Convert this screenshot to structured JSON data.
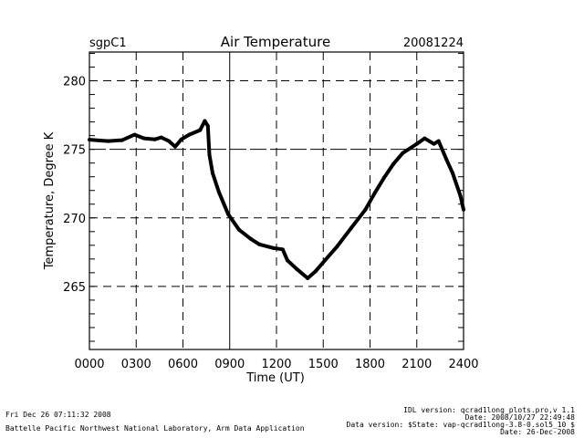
{
  "chart_data": {
    "type": "line",
    "title": "Air Temperature",
    "site": "sgpC1",
    "date": "20081224",
    "xlabel": "Time (UT)",
    "ylabel": "Temperature, Degree K",
    "xlim": [
      0,
      24
    ],
    "ylim": [
      260.4,
      282.1
    ],
    "x_tick_values": [
      0,
      3,
      6,
      9,
      12,
      15,
      18,
      21,
      24
    ],
    "x_tick_labels": [
      "0000",
      "0300",
      "0600",
      "0900",
      "1200",
      "1500",
      "1800",
      "2100",
      "2400"
    ],
    "y_tick_values": [
      265,
      270,
      275,
      280
    ],
    "y_tick_labels": [
      "265",
      "270",
      "275",
      "280"
    ],
    "grid": true,
    "series": [
      {
        "name": "Air Temperature",
        "color": "#000000",
        "x": [
          0,
          1.2,
          2.1,
          2.9,
          3.5,
          4.2,
          4.6,
          5.1,
          5.5,
          5.9,
          6.4,
          7.1,
          7.4,
          7.6,
          7.7,
          7.9,
          8.3,
          8.9,
          9.6,
          10.35,
          10.9,
          11.8,
          12.4,
          12.7,
          13.3,
          14.0,
          14.5,
          15.1,
          15.9,
          16.8,
          17.7,
          18.3,
          18.9,
          19.5,
          20.1,
          21.0,
          21.5,
          22.1,
          22.4,
          22.9,
          23.3,
          23.8,
          24
        ],
        "y": [
          275.7,
          275.6,
          275.67,
          276.07,
          275.8,
          275.73,
          275.87,
          275.6,
          275.2,
          275.73,
          276.07,
          276.4,
          277.07,
          276.7,
          274.6,
          273.27,
          271.9,
          270.27,
          269.13,
          268.47,
          268.07,
          267.8,
          267.7,
          266.9,
          266.27,
          265.6,
          266.1,
          266.9,
          267.93,
          269.27,
          270.6,
          271.8,
          272.93,
          273.93,
          274.73,
          275.4,
          275.8,
          275.4,
          275.6,
          274.27,
          273.27,
          271.6,
          270.6
        ]
      }
    ]
  },
  "footer": {
    "timestamp": "Fri Dec 26 07:11:32 2008",
    "organization": "Battelle Pacific Northwest National Laboratory, Arm Data Application",
    "idl_version": "IDL version: qcrad1long_plots.pro,v 1.1",
    "idl_date": "Date: 2008/10/27 22:49:48",
    "data_version": "Data version: $State: vap-qcrad1long-3.8-0.sol5_10 $",
    "data_date": "Date: 26-Dec-2008"
  }
}
